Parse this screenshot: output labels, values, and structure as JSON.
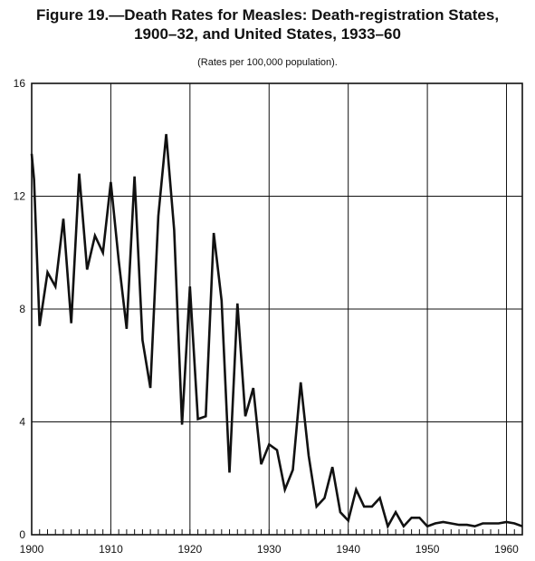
{
  "chart_data": {
    "type": "line",
    "title_line1": "Figure 19.—Death Rates for Measles:  Death-registration States,",
    "title_line2": "1900–32, and United States, 1933–60",
    "subtitle": "(Rates per 100,000 population).",
    "xlabel": "",
    "ylabel": "",
    "xlim": [
      1900,
      1962
    ],
    "ylim": [
      0,
      16
    ],
    "x_ticks": [
      1900,
      1910,
      1920,
      1930,
      1940,
      1950,
      1960
    ],
    "y_ticks": [
      0,
      4,
      8,
      12,
      16
    ],
    "grid": true,
    "series": [
      {
        "x": [
          1900,
          1900.3,
          1901,
          1902,
          1903,
          1904,
          1905,
          1906,
          1907,
          1908,
          1909,
          1910,
          1911,
          1912,
          1913,
          1914,
          1915,
          1916,
          1917,
          1918,
          1919,
          1920,
          1921,
          1922,
          1923,
          1924,
          1925,
          1926,
          1927,
          1928,
          1929,
          1930,
          1931,
          1932,
          1933,
          1934,
          1935,
          1936,
          1937,
          1938,
          1939,
          1940,
          1941,
          1942,
          1943,
          1944,
          1945,
          1946,
          1947,
          1948,
          1949,
          1950,
          1951,
          1952,
          1953,
          1954,
          1955,
          1956,
          1957,
          1958,
          1959,
          1960,
          1961,
          1962
        ],
        "values": [
          13.5,
          12.6,
          7.4,
          9.3,
          8.8,
          11.2,
          7.5,
          12.8,
          9.4,
          10.6,
          10.0,
          12.5,
          9.7,
          7.3,
          12.7,
          6.9,
          5.2,
          11.3,
          14.2,
          10.8,
          3.9,
          8.8,
          4.1,
          4.2,
          10.7,
          8.3,
          2.2,
          8.2,
          4.2,
          5.2,
          2.5,
          3.2,
          3.0,
          1.6,
          2.3,
          5.4,
          2.8,
          1.0,
          1.3,
          2.4,
          0.8,
          0.5,
          1.6,
          1.0,
          1.0,
          1.3,
          0.3,
          0.8,
          0.3,
          0.6,
          0.6,
          0.3,
          0.4,
          0.45,
          0.4,
          0.35,
          0.35,
          0.3,
          0.4,
          0.4,
          0.4,
          0.45,
          0.4,
          0.3
        ]
      }
    ]
  }
}
